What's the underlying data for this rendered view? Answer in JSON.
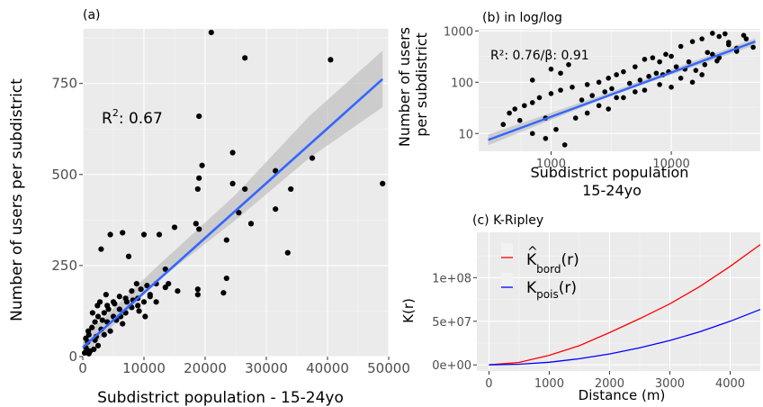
{
  "chart_data": [
    {
      "id": "a",
      "type": "scatter",
      "title": "(a)",
      "xlabel": "Subdistrict population - 15-24yo",
      "ylabel": "Number of users per subdistrict",
      "xlim": [
        0,
        50000
      ],
      "ylim": [
        0,
        900
      ],
      "x_ticks": [
        0,
        10000,
        20000,
        30000,
        40000,
        50000
      ],
      "x_tick_labels": [
        "0",
        "10000",
        "20000",
        "30000",
        "40000",
        "50000"
      ],
      "y_ticks": [
        0,
        250,
        500,
        750
      ],
      "y_tick_labels": [
        "0",
        "250",
        "500",
        "750"
      ],
      "annotation": {
        "base": "R",
        "sup": "2",
        "rest": ": 0.67"
      },
      "grid": true,
      "points": [
        [
          21000,
          890
        ],
        [
          26500,
          820
        ],
        [
          40500,
          815
        ],
        [
          19000,
          660
        ],
        [
          49000,
          475
        ],
        [
          37500,
          545
        ],
        [
          24500,
          560
        ],
        [
          19500,
          525
        ],
        [
          31500,
          510
        ],
        [
          19000,
          490
        ],
        [
          24500,
          475
        ],
        [
          26500,
          460
        ],
        [
          34000,
          460
        ],
        [
          18800,
          460
        ],
        [
          31500,
          405
        ],
        [
          25500,
          395
        ],
        [
          18500,
          365
        ],
        [
          19000,
          350
        ],
        [
          15000,
          355
        ],
        [
          12500,
          335
        ],
        [
          10000,
          335
        ],
        [
          6500,
          340
        ],
        [
          4500,
          335
        ],
        [
          27500,
          365
        ],
        [
          23500,
          320
        ],
        [
          33500,
          285
        ],
        [
          3000,
          295
        ],
        [
          7500,
          275
        ],
        [
          23500,
          215
        ],
        [
          23000,
          175
        ],
        [
          18800,
          185
        ],
        [
          18800,
          170
        ],
        [
          13500,
          240
        ],
        [
          10500,
          195
        ],
        [
          12000,
          200
        ],
        [
          13500,
          190
        ],
        [
          11000,
          165
        ],
        [
          9000,
          160
        ],
        [
          8000,
          180
        ],
        [
          7000,
          160
        ],
        [
          6000,
          165
        ],
        [
          5000,
          150
        ],
        [
          4000,
          140
        ],
        [
          3500,
          120
        ],
        [
          2500,
          110
        ],
        [
          2000,
          95
        ],
        [
          1500,
          80
        ],
        [
          1000,
          60
        ],
        [
          800,
          40
        ],
        [
          500,
          25
        ],
        [
          300,
          10
        ],
        [
          1200,
          15
        ],
        [
          2000,
          45
        ],
        [
          3000,
          75
        ],
        [
          4000,
          95
        ],
        [
          5000,
          110
        ],
        [
          6000,
          130
        ],
        [
          7000,
          120
        ],
        [
          8000,
          135
        ],
        [
          9000,
          140
        ],
        [
          10000,
          150
        ],
        [
          11000,
          170
        ],
        [
          12000,
          150
        ],
        [
          14000,
          200
        ],
        [
          15500,
          180
        ],
        [
          6500,
          90
        ],
        [
          5500,
          100
        ],
        [
          4500,
          70
        ],
        [
          3500,
          60
        ],
        [
          2500,
          30
        ],
        [
          1800,
          20
        ],
        [
          1000,
          8
        ],
        [
          700,
          18
        ],
        [
          2200,
          55
        ],
        [
          3200,
          100
        ],
        [
          4200,
          130
        ],
        [
          5200,
          145
        ],
        [
          6200,
          110
        ],
        [
          7200,
          150
        ],
        [
          8200,
          155
        ],
        [
          9200,
          125
        ],
        [
          10200,
          110
        ],
        [
          9500,
          185
        ],
        [
          8800,
          200
        ],
        [
          2800,
          150
        ],
        [
          3800,
          170
        ],
        [
          1600,
          120
        ],
        [
          2400,
          140
        ],
        [
          500,
          50
        ],
        [
          900,
          70
        ]
      ],
      "fit": {
        "x": [
          0,
          49000
        ],
        "y": [
          25,
          762
        ]
      },
      "ci": {
        "x": [
          0,
          12000,
          25000,
          37000,
          49000
        ],
        "upper": [
          50,
          245,
          445,
          660,
          840
        ],
        "lower": [
          0,
          205,
          375,
          545,
          685
        ]
      }
    },
    {
      "id": "b",
      "type": "scatter",
      "title": "(b) in log/log",
      "xlabel": "Subdistrict population\n15-24yo",
      "ylabel": "Number of users\nper subdistrict",
      "x_scale": "log",
      "y_scale": "log",
      "xlim": [
        250,
        55000
      ],
      "ylim": [
        4.5,
        1100
      ],
      "x_ticks": [
        1000,
        10000
      ],
      "x_tick_labels": [
        "1000",
        "10000"
      ],
      "y_ticks": [
        10,
        100,
        1000
      ],
      "y_tick_labels": [
        "10",
        "100",
        "1000"
      ],
      "annotation": "R²: 0.76/β: 0.91",
      "grid": true,
      "points": [
        [
          22000,
          900
        ],
        [
          28000,
          880
        ],
        [
          40000,
          820
        ],
        [
          18000,
          700
        ],
        [
          25000,
          780
        ],
        [
          15000,
          620
        ],
        [
          12000,
          500
        ],
        [
          30000,
          540
        ],
        [
          48000,
          480
        ],
        [
          35000,
          460
        ],
        [
          20000,
          380
        ],
        [
          9000,
          350
        ],
        [
          10000,
          320
        ],
        [
          8000,
          250
        ],
        [
          7000,
          300
        ],
        [
          6000,
          280
        ],
        [
          5000,
          200
        ],
        [
          11000,
          200
        ],
        [
          13000,
          180
        ],
        [
          16000,
          170
        ],
        [
          19000,
          220
        ],
        [
          24000,
          260
        ],
        [
          4000,
          160
        ],
        [
          3500,
          140
        ],
        [
          3000,
          120
        ],
        [
          2500,
          100
        ],
        [
          2000,
          90
        ],
        [
          1500,
          80
        ],
        [
          1200,
          70
        ],
        [
          1000,
          60
        ],
        [
          800,
          50
        ],
        [
          700,
          40
        ],
        [
          600,
          35
        ],
        [
          500,
          30
        ],
        [
          450,
          25
        ],
        [
          1800,
          45
        ],
        [
          2200,
          55
        ],
        [
          2800,
          65
        ],
        [
          3200,
          75
        ],
        [
          4500,
          95
        ],
        [
          5500,
          110
        ],
        [
          6500,
          130
        ],
        [
          7500,
          150
        ],
        [
          8500,
          140
        ],
        [
          9500,
          160
        ],
        [
          1100,
          12
        ],
        [
          900,
          8
        ],
        [
          1300,
          6
        ],
        [
          700,
          10
        ],
        [
          1600,
          20
        ],
        [
          2000,
          25
        ],
        [
          3000,
          30
        ],
        [
          4000,
          50
        ],
        [
          6000,
          70
        ],
        [
          8000,
          90
        ],
        [
          12000,
          120
        ],
        [
          15000,
          100
        ],
        [
          18000,
          140
        ],
        [
          25000,
          300
        ],
        [
          35000,
          400
        ],
        [
          1000,
          180
        ],
        [
          1200,
          150
        ],
        [
          700,
          110
        ],
        [
          1400,
          220
        ],
        [
          900,
          20
        ],
        [
          400,
          15
        ],
        [
          550,
          18
        ],
        [
          2500,
          35
        ],
        [
          3500,
          50
        ],
        [
          5000,
          65
        ],
        [
          10000,
          80
        ],
        [
          14000,
          250
        ],
        [
          22000,
          350
        ],
        [
          30000,
          600
        ],
        [
          42000,
          700
        ]
      ],
      "fit": {
        "x": [
          300,
          50000
        ],
        "y": [
          7.5,
          620
        ]
      },
      "ci": {
        "x": [
          300,
          3000,
          50000
        ],
        "upper": [
          9.5,
          62,
          720
        ],
        "lower": [
          5.9,
          52,
          530
        ]
      }
    },
    {
      "id": "c",
      "type": "line",
      "title": "(c) K-Ripley",
      "xlabel": "Distance (m)",
      "ylabel": "K(r)",
      "xlim": [
        -200,
        4500
      ],
      "ylim": [
        -7000000,
        152000000
      ],
      "x_ticks": [
        0,
        1000,
        2000,
        3000,
        4000
      ],
      "x_tick_labels": [
        "0",
        "1000",
        "2000",
        "3000",
        "4000"
      ],
      "y_ticks": [
        0,
        50000000,
        100000000
      ],
      "y_tick_labels": [
        "0e+00",
        "5e+07",
        "1e+08"
      ],
      "legend_position": "top-left",
      "grid": true,
      "series": [
        {
          "name": {
            "main": "K",
            "accent": "^",
            "sub": "bord",
            "rest": "(r)"
          },
          "color": "#ff0000",
          "x": [
            0,
            500,
            1000,
            1500,
            2000,
            2500,
            3000,
            3500,
            4000,
            4500
          ],
          "y": [
            0,
            2800000,
            11000000,
            22000000,
            37000000,
            53000000,
            70000000,
            90000000,
            113000000,
            138000000
          ]
        },
        {
          "name": {
            "main": "K",
            "sub": "pois",
            "rest": "(r)"
          },
          "color": "#0000ff",
          "x": [
            0,
            500,
            1000,
            1500,
            2000,
            2500,
            3000,
            3500,
            4000,
            4500
          ],
          "y": [
            0,
            750000,
            3000000,
            7000000,
            12500000,
            19500000,
            28000000,
            38000000,
            50000000,
            63500000
          ]
        }
      ]
    }
  ]
}
